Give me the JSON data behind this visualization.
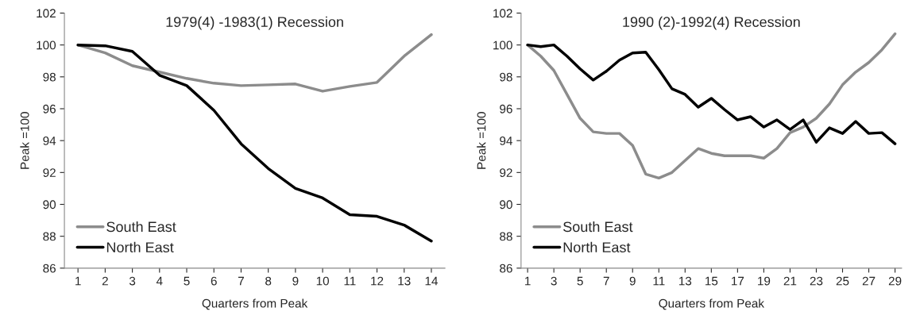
{
  "chart_data": [
    {
      "type": "line",
      "title": "1979(4) -1983(1) Recession",
      "xlabel": "Quarters from Peak",
      "ylabel": "Peak =100",
      "x": [
        1,
        2,
        3,
        4,
        5,
        6,
        7,
        8,
        9,
        10,
        11,
        12,
        13,
        14
      ],
      "series": [
        {
          "name": "South East",
          "color": "#8c8c8c",
          "values": [
            100,
            99.5,
            98.7,
            98.3,
            97.9,
            97.6,
            97.45,
            97.5,
            97.55,
            97.1,
            97.4,
            97.65,
            99.3,
            100.65
          ]
        },
        {
          "name": "North East",
          "color": "#000000",
          "values": [
            100,
            99.95,
            99.6,
            98.1,
            97.45,
            95.9,
            93.8,
            92.25,
            91.0,
            90.4,
            89.35,
            89.25,
            88.7,
            87.7
          ]
        }
      ],
      "xlim": [
        0.5,
        14.5
      ],
      "xticks": [
        1,
        2,
        3,
        4,
        5,
        6,
        7,
        8,
        9,
        10,
        11,
        12,
        13,
        14
      ],
      "ylim": [
        86,
        102
      ],
      "yticks": [
        86,
        88,
        90,
        92,
        94,
        96,
        98,
        100,
        102
      ],
      "legend": "bottom left",
      "grid": false
    },
    {
      "type": "line",
      "title": "1990 (2)-1992(4) Recession",
      "xlabel": "Quarters from Peak",
      "ylabel": "Peak =100",
      "x": [
        1,
        2,
        3,
        4,
        5,
        6,
        7,
        8,
        9,
        10,
        11,
        12,
        13,
        14,
        15,
        16,
        17,
        18,
        19,
        20,
        21,
        22,
        23,
        24,
        25,
        26,
        27,
        28,
        29
      ],
      "series": [
        {
          "name": "South East",
          "color": "#8c8c8c",
          "values": [
            100,
            99.3,
            98.4,
            96.9,
            95.4,
            94.55,
            94.45,
            94.45,
            93.7,
            91.9,
            91.65,
            92.0,
            92.75,
            93.5,
            93.2,
            93.05,
            93.05,
            93.05,
            92.9,
            93.5,
            94.5,
            94.85,
            95.4,
            96.3,
            97.5,
            98.3,
            98.9,
            99.7,
            100.7
          ]
        },
        {
          "name": "North East",
          "color": "#000000",
          "values": [
            100,
            99.9,
            100,
            99.3,
            98.5,
            97.8,
            98.35,
            99.05,
            99.5,
            99.55,
            98.45,
            97.25,
            96.9,
            96.1,
            96.65,
            95.95,
            95.3,
            95.5,
            94.85,
            95.3,
            94.7,
            95.3,
            93.9,
            94.8,
            94.45,
            95.2,
            94.45,
            94.5,
            93.8
          ]
        }
      ],
      "xlim": [
        0.5,
        29.5
      ],
      "xticks": [
        1,
        3,
        5,
        7,
        9,
        11,
        13,
        15,
        17,
        19,
        21,
        23,
        25,
        27,
        29
      ],
      "ylim": [
        86,
        102
      ],
      "yticks": [
        86,
        88,
        90,
        92,
        94,
        96,
        98,
        100,
        102
      ],
      "legend": "bottom left",
      "grid": false
    }
  ]
}
